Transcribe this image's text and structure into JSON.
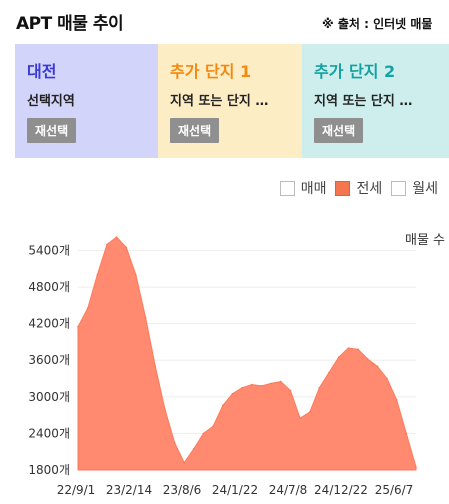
{
  "header": {
    "title": "APT 매물 추이",
    "source": "※ 출처 : 인터넷 매물"
  },
  "cards": [
    {
      "name": "대전",
      "region": "선택지역",
      "button": "재선택",
      "bg": "#d3d4f9",
      "color": "#3a3ad6"
    },
    {
      "name": "추가 단지 1",
      "region": "지역 또는 단지 …",
      "button": "재선택",
      "bg": "#fdedc5",
      "color": "#f28a12"
    },
    {
      "name": "추가 단지 2",
      "region": "지역 또는 단지 …",
      "button": "재선택",
      "bg": "#cdeeed",
      "color": "#13a1a1"
    }
  ],
  "legend": [
    {
      "label": "매매",
      "checked": false
    },
    {
      "label": "전세",
      "checked": true
    },
    {
      "label": "월세",
      "checked": false
    }
  ],
  "chart_data": {
    "type": "area",
    "series": [
      {
        "name": "전세",
        "color": "#ff8a70"
      }
    ],
    "ylabel": "매물 수",
    "ylim": [
      1800,
      5900
    ],
    "yticks": [
      1800,
      2400,
      3000,
      3600,
      4200,
      4800,
      5400
    ],
    "ytick_suffix": "개",
    "xticks": [
      "22/9/1",
      "23/2/14",
      "23/8/6",
      "24/1/22",
      "24/7/8",
      "24/12/22",
      "25/6/7"
    ],
    "x": [
      "22/9/1",
      "22/10/1",
      "22/11/1",
      "22/12/1",
      "23/1/1",
      "23/2/1",
      "23/3/1",
      "23/4/1",
      "23/5/1",
      "23/6/1",
      "23/7/1",
      "23/8/1",
      "23/9/1",
      "23/10/1",
      "23/11/1",
      "23/12/1",
      "24/1/1",
      "24/2/1",
      "24/3/1",
      "24/4/1",
      "24/5/1",
      "24/6/1",
      "24/7/1",
      "24/8/1",
      "24/9/1",
      "24/10/1",
      "24/11/1",
      "24/12/1",
      "25/1/1",
      "25/2/1",
      "25/3/1",
      "25/4/1",
      "25/5/1",
      "25/6/1",
      "25/7/1",
      "25/8/1"
    ],
    "values": [
      4150,
      4450,
      5000,
      5500,
      5620,
      5450,
      5000,
      4300,
      3500,
      2800,
      2250,
      1920,
      2150,
      2400,
      2520,
      2860,
      3050,
      3150,
      3200,
      3180,
      3220,
      3250,
      3100,
      2650,
      2750,
      3150,
      3400,
      3650,
      3800,
      3780,
      3620,
      3500,
      3300,
      2950,
      2400,
      1850
    ]
  }
}
